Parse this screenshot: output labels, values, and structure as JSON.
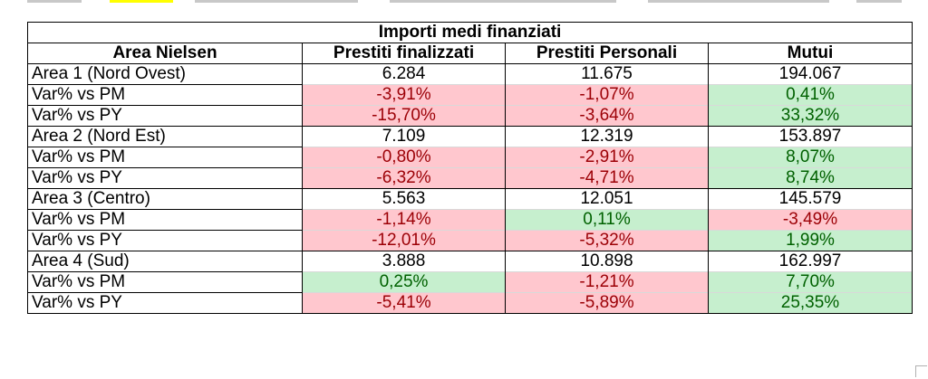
{
  "table": {
    "title": "Importi medi finanziati",
    "row_header": "Area Nielsen",
    "columns": [
      "Prestiti finalizzati",
      "Prestiti Personali",
      "Mutui"
    ],
    "rows": [
      {
        "label": "Area 1 (Nord Ovest)",
        "values": [
          "6.284",
          "11.675",
          "194.067"
        ],
        "kind": "area"
      },
      {
        "label": "Var% vs PM",
        "values": [
          "-3,91%",
          "-1,07%",
          "0,41%"
        ],
        "kind": "var"
      },
      {
        "label": "Var% vs PY",
        "values": [
          "-15,70%",
          "-3,64%",
          "33,32%"
        ],
        "kind": "var"
      },
      {
        "label": "Area 2 (Nord Est)",
        "values": [
          "7.109",
          "12.319",
          "153.897"
        ],
        "kind": "area"
      },
      {
        "label": "Var% vs PM",
        "values": [
          "-0,80%",
          "-2,91%",
          "8,07%"
        ],
        "kind": "var"
      },
      {
        "label": "Var% vs PY",
        "values": [
          "-6,32%",
          "-4,71%",
          "8,74%"
        ],
        "kind": "var"
      },
      {
        "label": "Area 3 (Centro)",
        "values": [
          "5.563",
          "12.051",
          "145.579"
        ],
        "kind": "area"
      },
      {
        "label": "Var% vs PM",
        "values": [
          "-1,14%",
          "0,11%",
          "-3,49%"
        ],
        "kind": "var"
      },
      {
        "label": "Var% vs PY",
        "values": [
          "-12,01%",
          "-5,32%",
          "1,99%"
        ],
        "kind": "var"
      },
      {
        "label": "Area 4 (Sud)",
        "values": [
          "3.888",
          "10.898",
          "162.997"
        ],
        "kind": "area"
      },
      {
        "label": "Var% vs PM",
        "values": [
          "0,25%",
          "-1,21%",
          "7,70%"
        ],
        "kind": "var"
      },
      {
        "label": "Var% vs PY",
        "values": [
          "-5,41%",
          "-5,89%",
          "25,35%"
        ],
        "kind": "var"
      }
    ]
  },
  "colors": {
    "negative_fill": "#ffc7ce",
    "negative_text": "#9c0006",
    "positive_fill": "#c6efce",
    "positive_text": "#006100",
    "highlight": "#ffff00"
  }
}
